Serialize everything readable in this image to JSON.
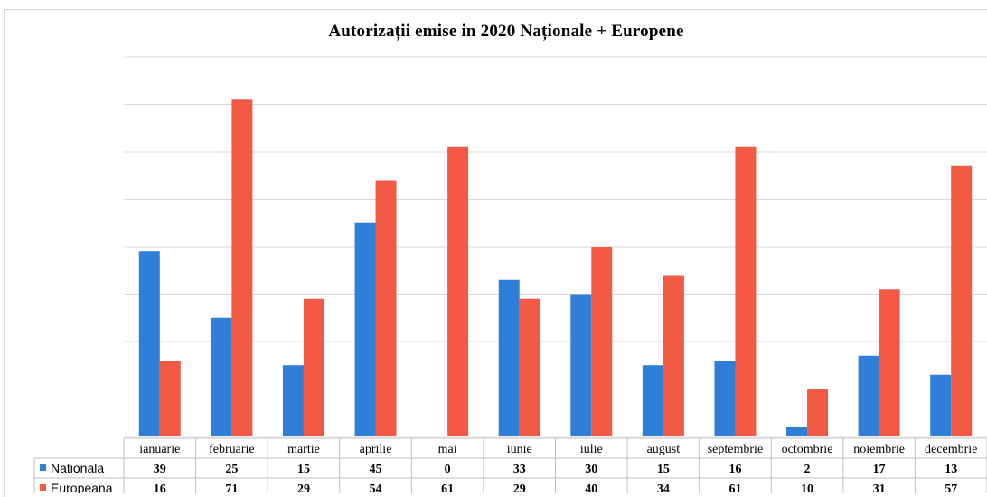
{
  "chart_data": {
    "type": "bar",
    "title": "Autorizații emise in 2020 Naționale + Europene",
    "categories": [
      "ianuarie",
      "februarie",
      "martie",
      "aprilie",
      "mai",
      "iunie",
      "iulie",
      "august",
      "septembrie",
      "octombrie",
      "noiembrie",
      "decembrie"
    ],
    "series": [
      {
        "name": "Nationala",
        "color": "#2f7ed8",
        "values": [
          39,
          25,
          15,
          45,
          0,
          33,
          30,
          15,
          16,
          2,
          17,
          13
        ]
      },
      {
        "name": "Europeana",
        "color": "#f25a45",
        "values": [
          16,
          71,
          29,
          54,
          61,
          29,
          40,
          34,
          61,
          10,
          31,
          57
        ]
      }
    ],
    "ylim": [
      0,
      80
    ],
    "grid": true,
    "legend": "data-table-left"
  }
}
